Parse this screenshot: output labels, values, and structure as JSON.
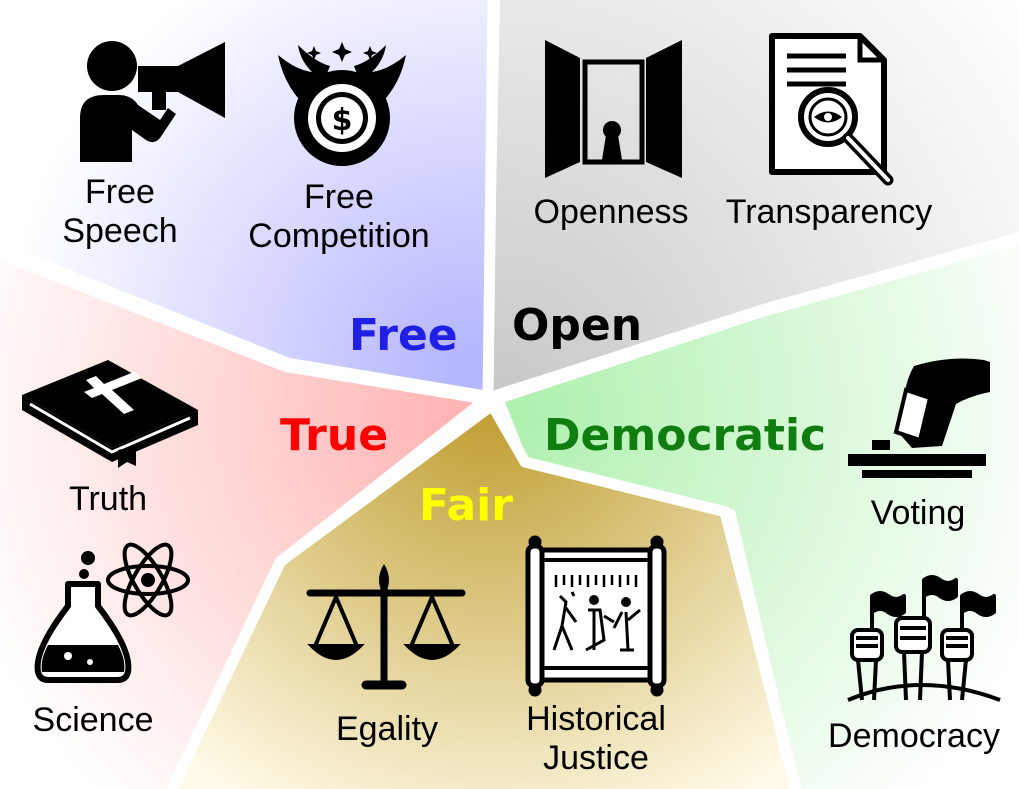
{
  "sections": {
    "free": {
      "title": "Free",
      "title_color": "#1f1fe6",
      "items": [
        {
          "label": "Free\nSpeech",
          "icon": "megaphone-person-icon"
        },
        {
          "label": "Free\nCompetition",
          "icon": "winged-coin-icon"
        }
      ]
    },
    "open": {
      "title": "Open",
      "title_color": "#000000",
      "items": [
        {
          "label": "Openness",
          "icon": "open-door-icon"
        },
        {
          "label": "Transparency",
          "icon": "document-magnifier-icon"
        }
      ]
    },
    "true": {
      "title": "True",
      "title_color": "#ff0000",
      "items": [
        {
          "label": "Truth",
          "icon": "bible-icon"
        },
        {
          "label": "Science",
          "icon": "flask-atom-icon"
        }
      ]
    },
    "fair": {
      "title": "Fair",
      "title_color": "#ffff00",
      "items": [
        {
          "label": "Egality",
          "icon": "scales-icon"
        },
        {
          "label": "Historical\nJustice",
          "icon": "scroll-icon"
        }
      ]
    },
    "democratic": {
      "title": "Democratic",
      "title_color": "#0f7d0f",
      "items": [
        {
          "label": "Voting",
          "icon": "ballot-box-icon"
        },
        {
          "label": "Democracy",
          "icon": "raised-fists-icon"
        }
      ]
    }
  },
  "colors": {
    "free_bg": "#c7c7ff",
    "open_bg": "#d6d6d6",
    "true_bg": "#ffc9c9",
    "fair_bg": "#c7a53a",
    "democratic_bg": "#c9f5c9"
  }
}
